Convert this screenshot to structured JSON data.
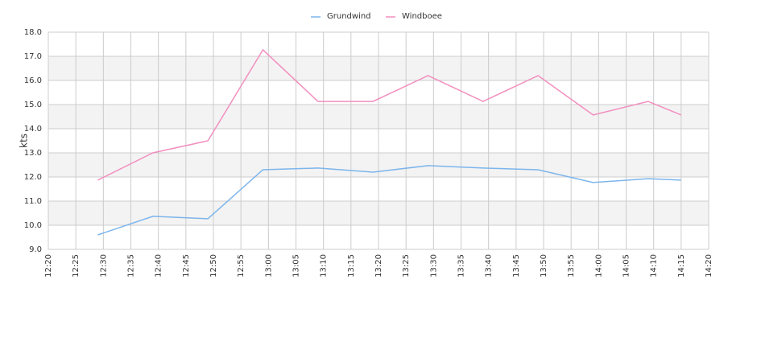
{
  "chart_data": {
    "type": "line",
    "y_label": "kts",
    "x": [
      "12:29",
      "12:39",
      "12:49",
      "12:59",
      "13:09",
      "13:19",
      "13:29",
      "13:39",
      "13:49",
      "13:59",
      "14:09",
      "14:15"
    ],
    "series": [
      {
        "name": "Grundwind",
        "color": "#7cb5ec",
        "values": [
          9.6,
          10.37,
          10.27,
          12.3,
          12.37,
          12.2,
          12.47,
          12.37,
          12.3,
          11.77,
          11.93,
          11.87
        ]
      },
      {
        "name": "Windboee",
        "color": "#f28fbf",
        "values": [
          11.87,
          13.0,
          13.5,
          17.27,
          15.13,
          15.13,
          16.2,
          15.13,
          16.2,
          14.57,
          15.13,
          14.57
        ]
      }
    ],
    "xlim": [
      "12:20",
      "14:20"
    ],
    "xticks": [
      "12:20",
      "12:25",
      "12:30",
      "12:35",
      "12:40",
      "12:45",
      "12:50",
      "12:55",
      "13:00",
      "13:05",
      "13:10",
      "13:15",
      "13:20",
      "13:25",
      "13:30",
      "13:35",
      "13:40",
      "13:45",
      "13:50",
      "13:55",
      "14:00",
      "14:05",
      "14:10",
      "14:15",
      "14:20"
    ],
    "ylim": [
      9,
      18
    ],
    "yticks": [
      {
        "value": 9,
        "label": "9.0"
      },
      {
        "value": 10,
        "label": "10.0"
      },
      {
        "value": 11,
        "label": "11.0"
      },
      {
        "value": 12,
        "label": "12.0"
      },
      {
        "value": 13,
        "label": "13.0"
      },
      {
        "value": 14,
        "label": "14.0"
      },
      {
        "value": 15,
        "label": "15.0"
      },
      {
        "value": 16,
        "label": "16.0"
      },
      {
        "value": 17,
        "label": "17.0"
      },
      {
        "value": 18,
        "label": "18.0"
      }
    ],
    "grid": true,
    "legend": "top"
  }
}
